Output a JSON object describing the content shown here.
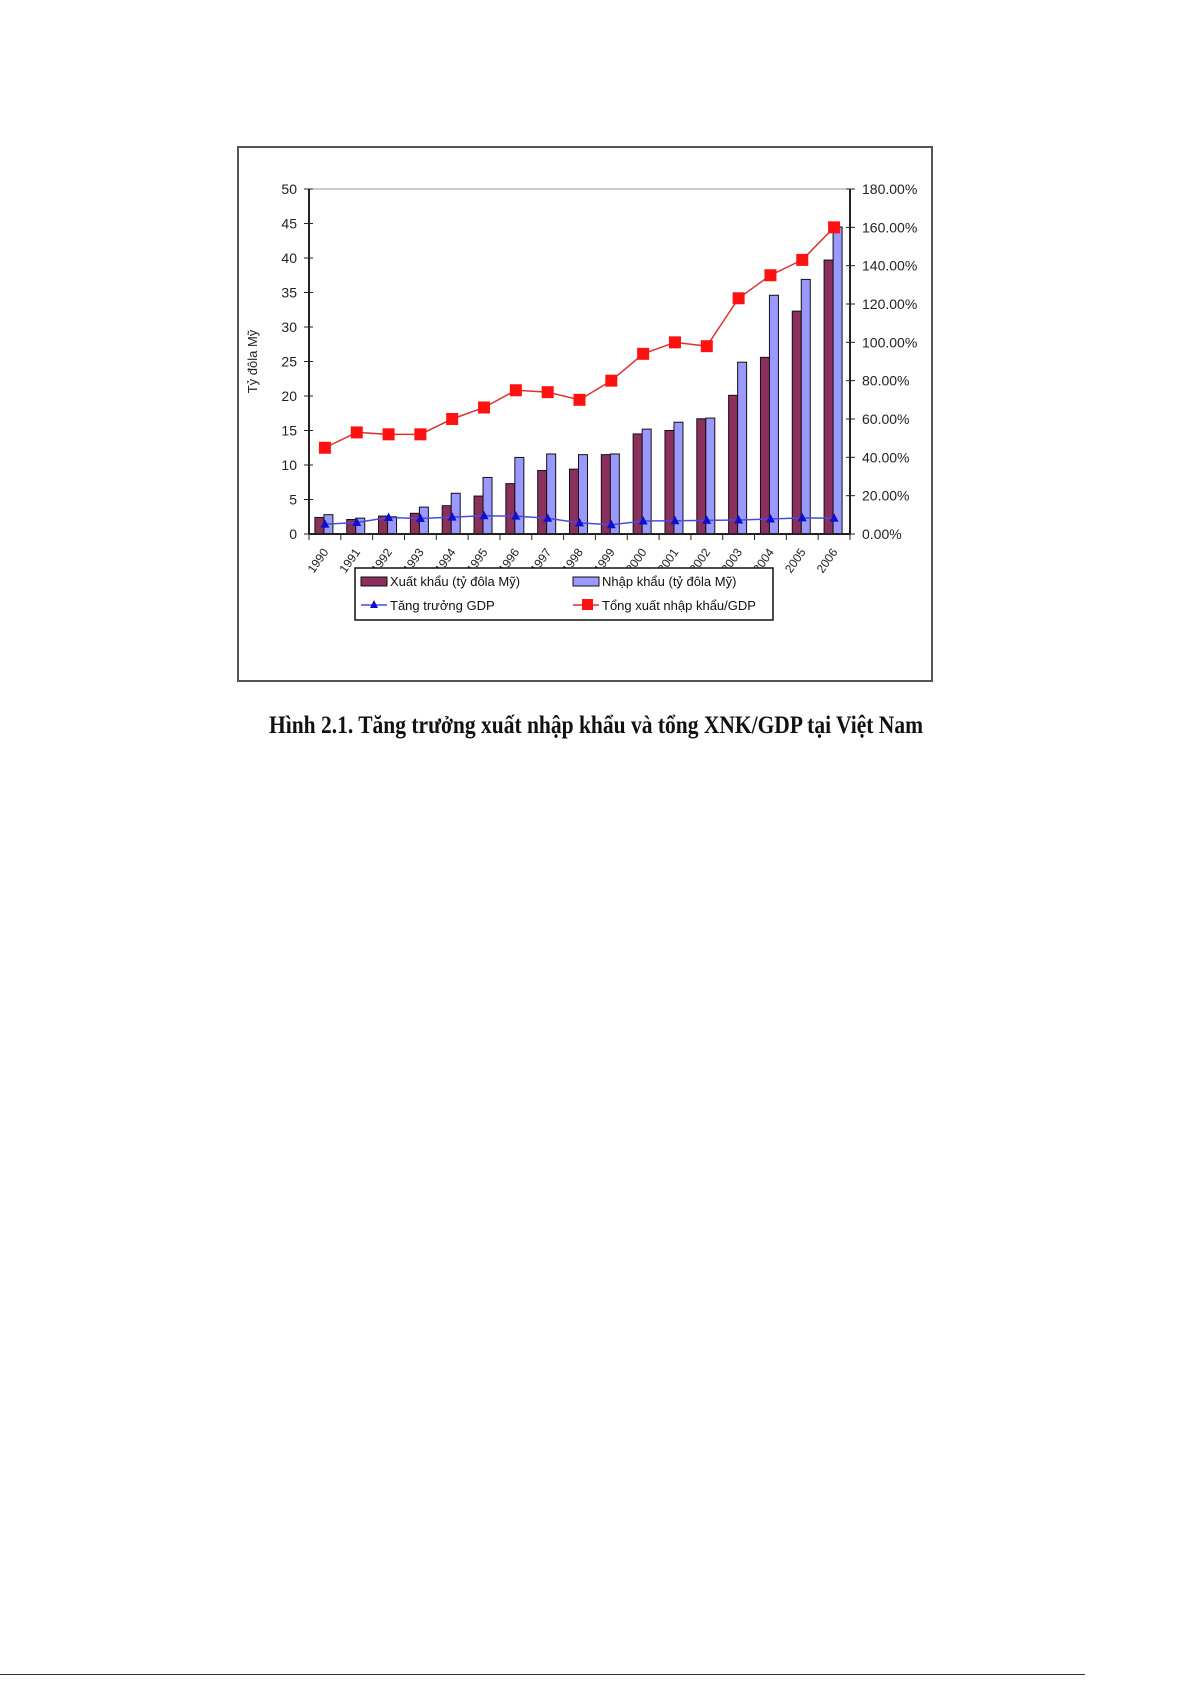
{
  "caption": "Hình 2.1. Tăng trưởng xuất nhập khẩu và tổng XNK/GDP tại Việt Nam",
  "chart_data": {
    "type": "bar",
    "title": "",
    "categories": [
      "1990",
      "1991",
      "1992",
      "1993",
      "1994",
      "1995",
      "1996",
      "1997",
      "1998",
      "1999",
      "2000",
      "2001",
      "2002",
      "2003",
      "2004",
      "2005",
      "2006"
    ],
    "ylabel": "Tỷ đôla Mỹ",
    "ylim": [
      0,
      50
    ],
    "yticks": [
      "0",
      "5",
      "10",
      "15",
      "20",
      "25",
      "30",
      "35",
      "40",
      "45",
      "50"
    ],
    "y2lim": [
      0,
      180
    ],
    "y2ticks": [
      "0.00%",
      "20.00%",
      "40.00%",
      "60.00%",
      "80.00%",
      "100.00%",
      "120.00%",
      "140.00%",
      "160.00%",
      "180.00%"
    ],
    "legend_position": "bottom",
    "series": [
      {
        "name": "Xuất khẩu (tỷ đôla Mỹ)",
        "type": "bar",
        "axis": "left",
        "color": "#8b2f5c",
        "values": [
          2.4,
          2.1,
          2.6,
          3.0,
          4.1,
          5.5,
          7.3,
          9.2,
          9.4,
          11.5,
          14.5,
          15.0,
          16.7,
          20.1,
          25.6,
          32.3,
          39.7
        ]
      },
      {
        "name": "Nhập khẩu (tỷ đôla Mỹ)",
        "type": "bar",
        "axis": "left",
        "color": "#9999ff",
        "values": [
          2.8,
          2.3,
          2.5,
          3.9,
          5.9,
          8.2,
          11.1,
          11.6,
          11.5,
          11.6,
          15.2,
          16.2,
          16.8,
          24.9,
          34.6,
          36.9,
          44.5
        ]
      },
      {
        "name": "Tăng trưởng GDP",
        "type": "line",
        "axis": "right",
        "color": "#1a1acc",
        "values": [
          5.1,
          6.0,
          8.6,
          8.1,
          8.8,
          9.5,
          9.3,
          8.2,
          5.8,
          4.8,
          6.8,
          6.9,
          7.1,
          7.3,
          7.8,
          8.4,
          8.2
        ]
      },
      {
        "name": "Tổng xuất nhập khẩu/GDP",
        "type": "line",
        "axis": "right",
        "color": "#ff0000",
        "values": [
          45,
          53,
          52,
          52,
          60,
          66,
          75,
          74,
          70,
          80,
          94,
          100,
          98,
          123,
          135,
          143,
          160
        ]
      }
    ]
  }
}
